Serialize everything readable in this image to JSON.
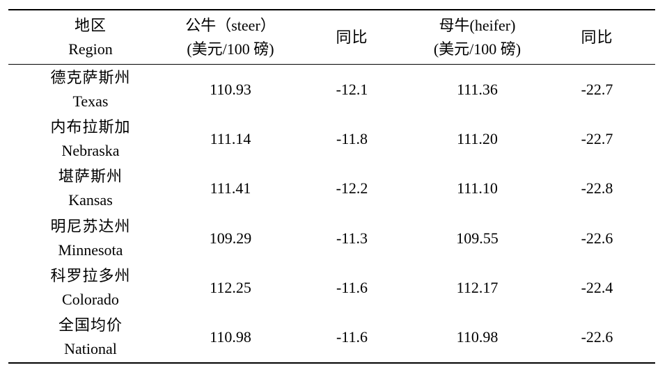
{
  "header": {
    "region_zh": "地区",
    "region_en": "Region",
    "steer_line1": "公牛（steer）",
    "steer_line2": "(美元/100 磅)",
    "yoy1": "同比",
    "heifer_line1": "母牛(heifer)",
    "heifer_line2": "(美元/100 磅)",
    "yoy2": "同比"
  },
  "rows": [
    {
      "zh": "德克萨斯州",
      "en": "Texas",
      "steer": "110.93",
      "steer_yoy": "-12.1",
      "heifer": "111.36",
      "heifer_yoy": "-22.7"
    },
    {
      "zh": "内布拉斯加",
      "en": "Nebraska",
      "steer": "111.14",
      "steer_yoy": "-11.8",
      "heifer": "111.20",
      "heifer_yoy": "-22.7"
    },
    {
      "zh": "堪萨斯州",
      "en": "Kansas",
      "steer": "111.41",
      "steer_yoy": "-12.2",
      "heifer": "111.10",
      "heifer_yoy": "-22.8"
    },
    {
      "zh": "明尼苏达州",
      "en": "Minnesota",
      "steer": "109.29",
      "steer_yoy": "-11.3",
      "heifer": "109.55",
      "heifer_yoy": "-22.6"
    },
    {
      "zh": "科罗拉多州",
      "en": "Colorado",
      "steer": "112.25",
      "steer_yoy": "-11.6",
      "heifer": "112.17",
      "heifer_yoy": "-22.4"
    },
    {
      "zh": "全国均价",
      "en": "National",
      "steer": "110.98",
      "steer_yoy": "-11.6",
      "heifer": "110.98",
      "heifer_yoy": "-22.6"
    }
  ]
}
